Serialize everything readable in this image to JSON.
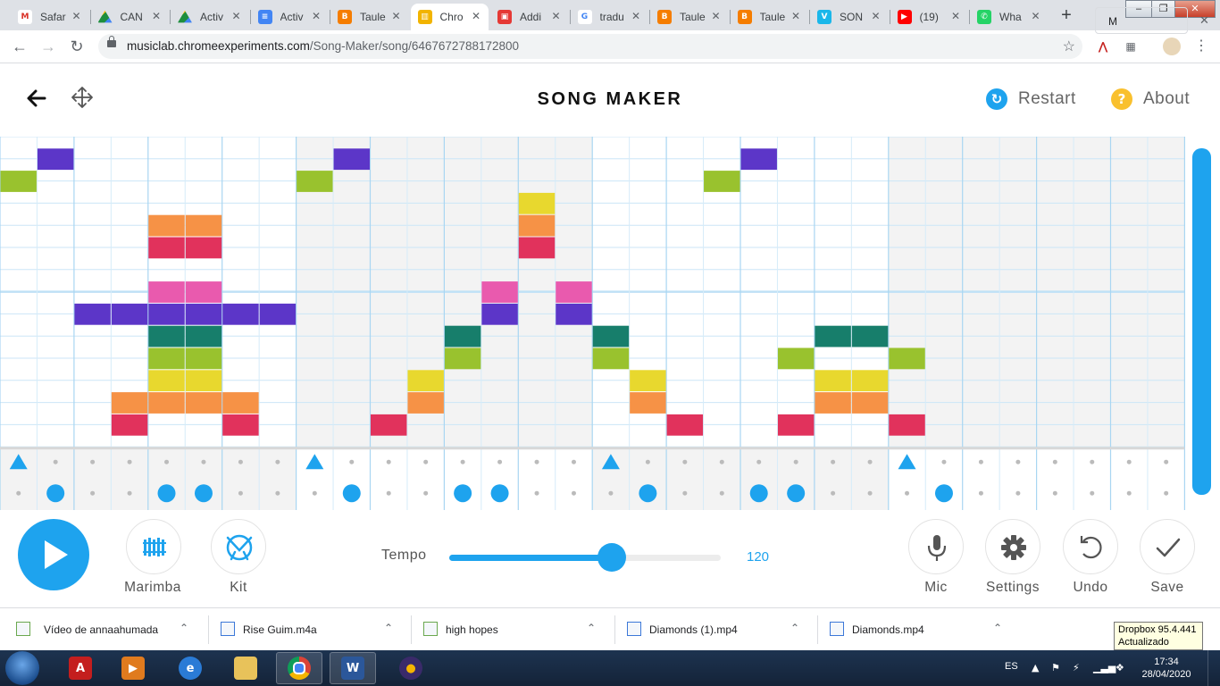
{
  "browser": {
    "tabs": [
      {
        "label": "Safar",
        "color": "#ffffff",
        "glyph": "M",
        "glyphColor": "#d93025"
      },
      {
        "label": "CAN",
        "color": "#ffffff",
        "glyph": "drive",
        "glyphColor": "#1e8e3e"
      },
      {
        "label": "Activ",
        "color": "#ffffff",
        "glyph": "drive",
        "glyphColor": "#1e8e3e"
      },
      {
        "label": "Activ",
        "color": "#4285f4",
        "glyph": "≡",
        "glyphColor": "#ffffff"
      },
      {
        "label": "Taule",
        "color": "#f57d00",
        "glyph": "B",
        "glyphColor": "#ffffff"
      },
      {
        "label": "Chro",
        "color": "#f2b400",
        "glyph": "▥",
        "glyphColor": "#ffffff",
        "active": true
      },
      {
        "label": "Addi",
        "color": "#e53935",
        "glyph": "▣",
        "glyphColor": "#ffffff"
      },
      {
        "label": "tradu",
        "color": "#ffffff",
        "glyph": "G",
        "glyphColor": "#4285f4"
      },
      {
        "label": "Taule",
        "color": "#f57d00",
        "glyph": "B",
        "glyphColor": "#ffffff"
      },
      {
        "label": "Taule",
        "color": "#f57d00",
        "glyph": "B",
        "glyphColor": "#ffffff"
      },
      {
        "label": "SON",
        "color": "#1ab7ea",
        "glyph": "V",
        "glyphColor": "#ffffff"
      },
      {
        "label": "(19)",
        "color": "#ff0000",
        "glyph": "▶",
        "glyphColor": "#ffffff"
      },
      {
        "label": "Wha",
        "color": "#25d366",
        "glyph": "✆",
        "glyphColor": "#ffffff"
      }
    ],
    "new_tab": "+",
    "url_host": "musiclab.chromeexperiments.com",
    "url_path": "/Song-Maker/song/6467672788172800",
    "icons": {
      "back": "back-arrow-icon",
      "forward": "forward-arrow-icon",
      "reload": "reload-icon",
      "star": "star-icon"
    }
  },
  "app": {
    "title": "SONG MAKER",
    "restart": "Restart",
    "about": "About",
    "about_glyph": "?",
    "restart_glyph": "↻",
    "colors": {
      "accent": "#1ea3ee",
      "about": "#f9c02e"
    }
  },
  "song": {
    "columns": 32,
    "melody_rows": 14,
    "bars": 4,
    "beats_per_bar": 4,
    "row_colors": [
      "#5c36c8",
      "#99c22e",
      "#e8d82e",
      "#f69246",
      "#e1325c",
      "#e95aae",
      "#5c36c8",
      "#177e6b",
      "#99c22e",
      "#e8d82e",
      "#f69246",
      "#e1325c"
    ],
    "notes": [
      [
        1,
        1
      ],
      [
        1,
        9
      ],
      [
        1,
        20
      ],
      [
        2,
        0
      ],
      [
        2,
        8
      ],
      [
        2,
        19
      ],
      [
        3,
        14
      ],
      [
        4,
        4
      ],
      [
        4,
        5
      ],
      [
        4,
        14
      ],
      [
        5,
        4
      ],
      [
        5,
        5
      ],
      [
        5,
        14
      ],
      [
        7,
        4
      ],
      [
        7,
        5
      ],
      [
        7,
        13
      ],
      [
        7,
        15
      ],
      [
        8,
        2
      ],
      [
        8,
        3
      ],
      [
        8,
        4
      ],
      [
        8,
        5
      ],
      [
        8,
        6
      ],
      [
        8,
        7
      ],
      [
        8,
        13
      ],
      [
        8,
        15
      ],
      [
        9,
        4
      ],
      [
        9,
        5
      ],
      [
        9,
        12
      ],
      [
        9,
        16
      ],
      [
        9,
        22
      ],
      [
        9,
        23
      ],
      [
        10,
        4
      ],
      [
        10,
        5
      ],
      [
        10,
        12
      ],
      [
        10,
        16
      ],
      [
        10,
        21
      ],
      [
        10,
        24
      ],
      [
        11,
        4
      ],
      [
        11,
        5
      ],
      [
        11,
        11
      ],
      [
        11,
        17
      ],
      [
        11,
        22
      ],
      [
        11,
        23
      ],
      [
        12,
        3
      ],
      [
        12,
        4
      ],
      [
        12,
        5
      ],
      [
        12,
        6
      ],
      [
        12,
        11
      ],
      [
        12,
        17
      ],
      [
        12,
        22
      ],
      [
        12,
        23
      ],
      [
        13,
        3
      ],
      [
        13,
        6
      ],
      [
        13,
        10
      ],
      [
        13,
        18
      ],
      [
        13,
        21
      ],
      [
        13,
        24
      ]
    ],
    "note_colors_by_row": {
      "1": "#5c36c8",
      "2": "#99c22e",
      "3": "#e8d82e",
      "4": "#f69246",
      "5": "#e1325c",
      "7": "#e95aae",
      "8": "#5c36c8",
      "9": "#177e6b",
      "10": "#99c22e",
      "11": "#e8d82e",
      "12": "#f69246",
      "13": "#e1325c"
    },
    "triangle_columns": [
      0,
      8,
      16,
      24
    ],
    "circle_columns": [
      1,
      4,
      5,
      9,
      12,
      13,
      17,
      20,
      21,
      25
    ]
  },
  "controls": {
    "instrument": "Marimba",
    "kit": "Kit",
    "tempo_label": "Tempo",
    "tempo_value": "120",
    "tempo_fraction": 0.6,
    "mic": "Mic",
    "settings": "Settings",
    "undo": "Undo",
    "save": "Save"
  },
  "downloads": {
    "items": [
      {
        "name": "Vídeo de annaahumada"
      },
      {
        "name": "Rise Guim.m4a"
      },
      {
        "name": "high hopes"
      },
      {
        "name": "Diamonds (1).mp4"
      },
      {
        "name": "Diamonds.mp4"
      }
    ],
    "more": "M",
    "tooltip_line1": "Dropbox 95.4.441",
    "tooltip_line2": "Actualizado"
  },
  "taskbar": {
    "language": "ES",
    "time": "17:34",
    "date": "28/04/2020"
  }
}
